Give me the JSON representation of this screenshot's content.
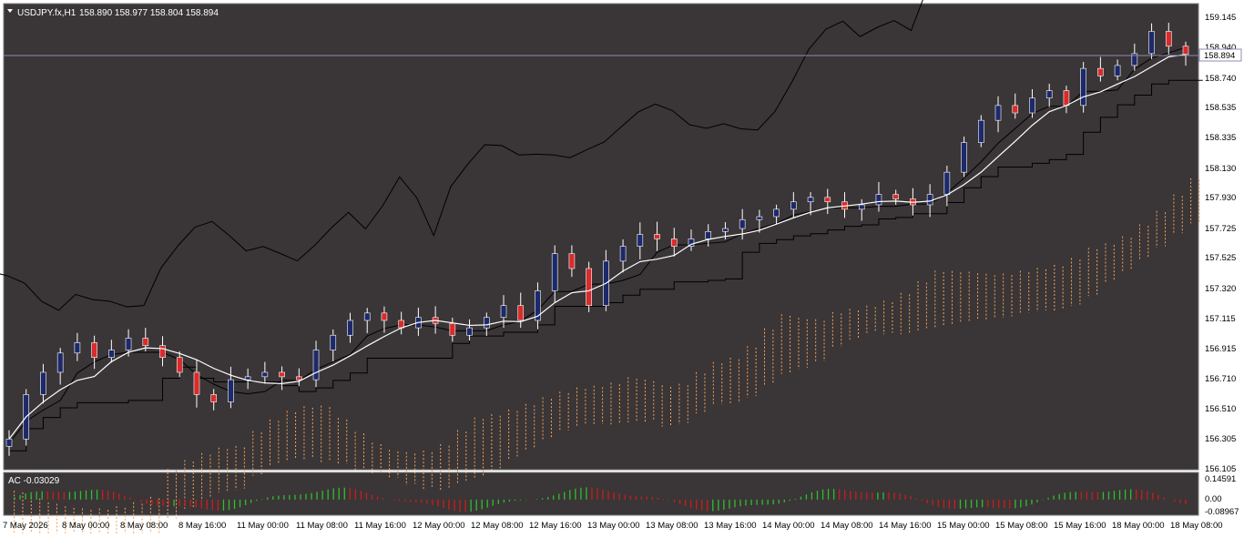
{
  "header": {
    "symbol_label": "USDJPY.fx,H1",
    "ohlc_label": "158.890 158.977 158.804 158.894"
  },
  "subwindow": {
    "indicator_label": "AC -0.03029",
    "scale_labels": [
      "0.14591",
      "0.00",
      "-0.08967"
    ]
  },
  "current_price_label": "158.894",
  "price_axis_labels": [
    "159.145",
    "158.940",
    "158.740",
    "158.535",
    "158.335",
    "158.130",
    "157.930",
    "157.725",
    "157.525",
    "157.320",
    "157.115",
    "156.915",
    "156.710",
    "156.510",
    "156.305",
    "156.105"
  ],
  "time_axis_labels": [
    "7 May 2026",
    "8 May 00:00",
    "8 May 08:00",
    "8 May 16:00",
    "11 May 00:00",
    "11 May 08:00",
    "11 May 16:00",
    "12 May 00:00",
    "12 May 08:00",
    "12 May 16:00",
    "13 May 00:00",
    "13 May 08:00",
    "13 May 16:00",
    "14 May 00:00",
    "14 May 08:00",
    "14 May 16:00",
    "15 May 00:00",
    "15 May 08:00",
    "15 May 16:00",
    "18 May 00:00",
    "18 May 08:00"
  ],
  "colors": {
    "chart_background": "#3a3536",
    "grid_lines": "#2a2728",
    "bull_candle_body": "#1c2a6b",
    "bear_candle_body": "#d92b2b",
    "candle_wick": "#ffffff",
    "moving_average": "#ffffff",
    "ichimoku_lines": "#000000",
    "kumo_cloud": "#f5a25d",
    "ac_up_bar": "#2fbf2f",
    "ac_down_bar": "#c81e1e",
    "current_price_line": "#8c8cb4"
  },
  "chart_data": {
    "type": "candlestick",
    "symbol": "USDJPY.fx",
    "timeframe": "H1",
    "ylim": [
      156.105,
      159.145
    ],
    "last_close": 158.894,
    "indicators": [
      "Moving Average",
      "Ichimoku Kinko Hyo",
      "Accelerator Oscillator (AC)"
    ],
    "closes": [
      156.3,
      156.6,
      156.75,
      156.88,
      156.95,
      156.85,
      156.9,
      156.98,
      156.93,
      156.85,
      156.75,
      156.6,
      156.55,
      156.7,
      156.72,
      156.75,
      156.72,
      156.7,
      156.9,
      157.0,
      157.1,
      157.15,
      157.1,
      157.05,
      157.12,
      157.08,
      157.0,
      157.05,
      157.12,
      157.2,
      157.1,
      157.3,
      157.55,
      157.45,
      157.2,
      157.5,
      157.6,
      157.68,
      157.65,
      157.6,
      157.65,
      157.7,
      157.72,
      157.78,
      157.8,
      157.85,
      157.9,
      157.93,
      157.9,
      157.85,
      157.88,
      157.95,
      157.92,
      157.88,
      157.95,
      158.1,
      158.3,
      158.45,
      158.55,
      158.5,
      158.6,
      158.65,
      158.55,
      158.8,
      158.75,
      158.82,
      158.9,
      159.05,
      158.95,
      158.894
    ],
    "ac": {
      "scale": [
        -0.08967,
        0.14591
      ],
      "last_value": -0.03029
    }
  }
}
